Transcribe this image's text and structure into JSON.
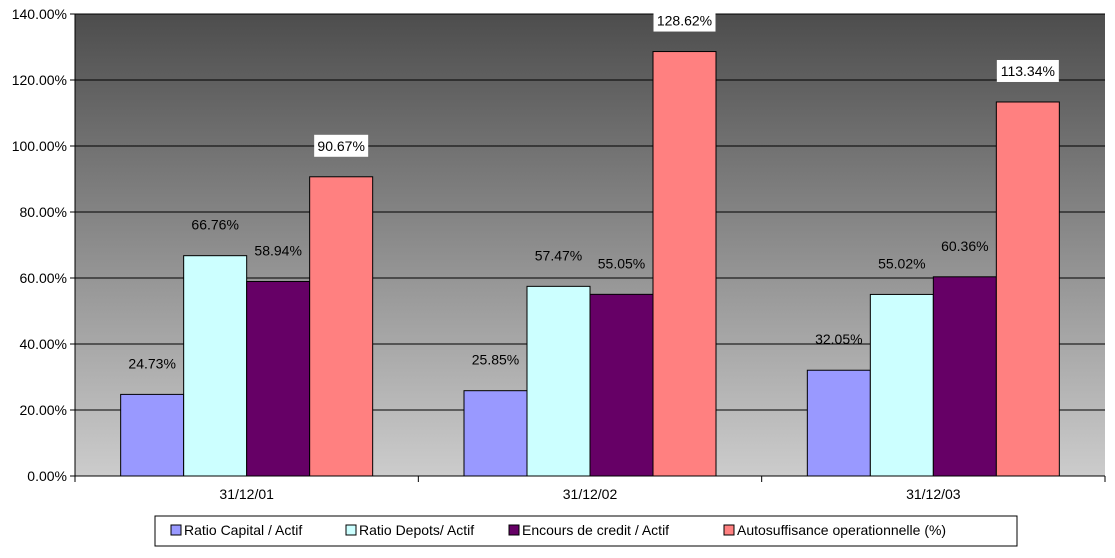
{
  "chart_data": {
    "type": "bar",
    "categories": [
      "31/12/01",
      "31/12/02",
      "31/12/03"
    ],
    "series": [
      {
        "name": "Ratio Capital / Actif",
        "values": [
          24.73,
          25.85,
          32.05
        ],
        "labels": [
          "24.73%",
          "25.85%",
          "32.05%"
        ],
        "color": "#9999ff"
      },
      {
        "name": "Ratio Depots/ Actif",
        "values": [
          66.76,
          57.47,
          55.02
        ],
        "labels": [
          "66.76%",
          "57.47%",
          "55.02%"
        ],
        "color": "#ccffff"
      },
      {
        "name": "Encours de credit / Actif",
        "values": [
          58.94,
          55.05,
          60.36
        ],
        "labels": [
          "58.94%",
          "55.05%",
          "60.36%"
        ],
        "color": "#660066"
      },
      {
        "name": "Autosuffisance operationnelle (%)",
        "values": [
          90.67,
          128.62,
          113.34
        ],
        "labels": [
          "90.67%",
          "128.62%",
          "113.34%"
        ],
        "color": "#ff8080",
        "label_boxed": true
      }
    ],
    "ylim": [
      0,
      140
    ],
    "yticks": [
      0,
      20,
      40,
      60,
      80,
      100,
      120,
      140
    ],
    "ytick_labels": [
      "0.00%",
      "20.00%",
      "40.00%",
      "60.00%",
      "80.00%",
      "100.00%",
      "120.00%",
      "140.00%"
    ],
    "grid": true,
    "background": "gradient dark-grey to light-grey",
    "legend_position": "bottom"
  }
}
